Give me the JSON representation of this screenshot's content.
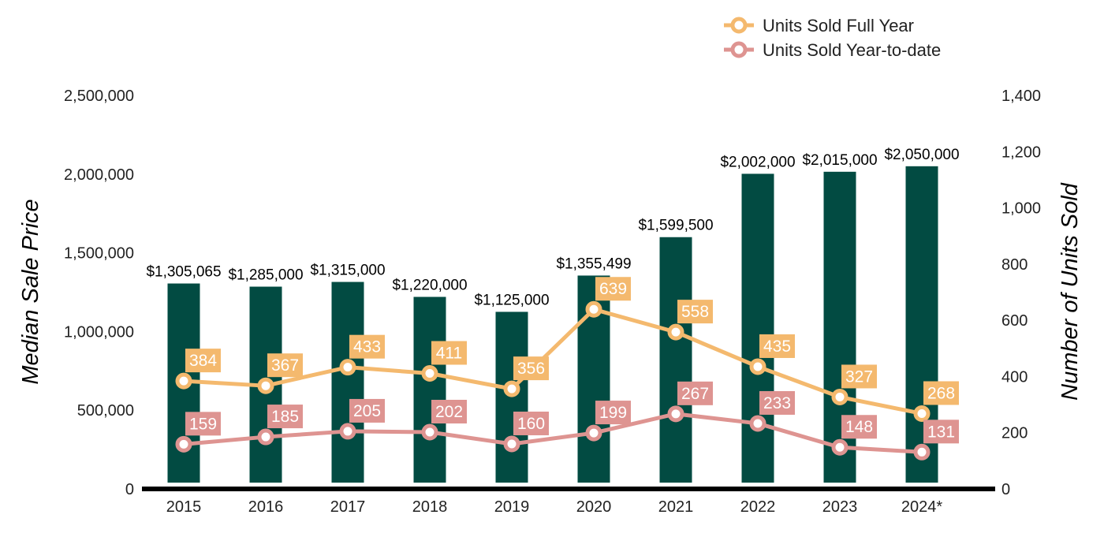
{
  "chart_data": {
    "type": "bar",
    "categories": [
      "2015",
      "2016",
      "2017",
      "2018",
      "2019",
      "2020",
      "2021",
      "2022",
      "2023",
      "2024*"
    ],
    "y_left_label": "Median Sale Price",
    "y_right_label": "Number of Units Sold",
    "y_left_lim": [
      0,
      2500000
    ],
    "y_right_lim": [
      0,
      1400
    ],
    "y_left_ticks": [
      "0",
      "500,000",
      "1,000,000",
      "1,500,000",
      "2,000,000",
      "2,500,000"
    ],
    "y_right_ticks": [
      "0",
      "200",
      "400",
      "600",
      "800",
      "1,000",
      "1,200",
      "1,400"
    ],
    "y_left_tick_values": [
      0,
      500000,
      1000000,
      1500000,
      2000000,
      2500000
    ],
    "y_right_tick_values": [
      0,
      200,
      400,
      600,
      800,
      1000,
      1200,
      1400
    ],
    "bars": {
      "axis": "left",
      "values": [
        1305065,
        1285000,
        1315000,
        1220000,
        1125000,
        1355499,
        1599500,
        2002000,
        2015000,
        2050000
      ],
      "labels": [
        "$1,305,065",
        "$1,285,000",
        "$1,315,000",
        "$1,220,000",
        "$1,125,000",
        "$1,355,499",
        "$1,599,500",
        "$2,002,000",
        "$2,015,000",
        "$2,050,000"
      ],
      "color": "#024b42"
    },
    "series": [
      {
        "name": "Units Sold Full Year",
        "type": "line",
        "axis": "right",
        "color": "#f4b96e",
        "values": [
          384,
          367,
          433,
          411,
          356,
          639,
          558,
          435,
          327,
          268
        ]
      },
      {
        "name": "Units Sold Year-to-date",
        "type": "line",
        "axis": "right",
        "color": "#de9491",
        "values": [
          159,
          185,
          205,
          202,
          160,
          199,
          267,
          233,
          148,
          131
        ]
      }
    ],
    "legend_position": "top-right",
    "grid": false
  }
}
